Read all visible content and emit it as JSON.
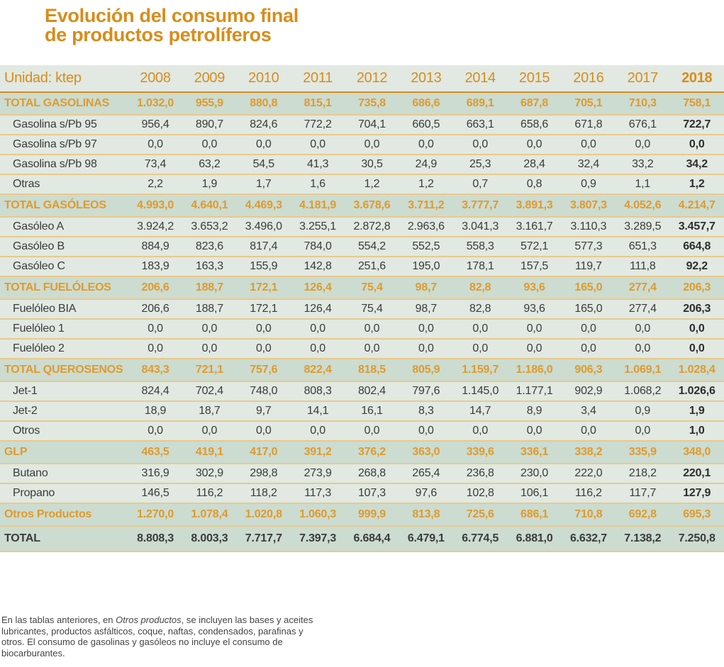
{
  "title": {
    "line1": "Evolución del consumo final",
    "line2": "de productos petrolíferos"
  },
  "colors": {
    "accent": "#d98c1a",
    "total_row_bg": "#ccdcd0",
    "row_bg": "#e1e9e2",
    "divider": "#e9c98c",
    "text": "#3b3b3b"
  },
  "table": {
    "unit_label": "Unidad: ktep",
    "years": [
      "2008",
      "2009",
      "2010",
      "2011",
      "2012",
      "2013",
      "2014",
      "2015",
      "2016",
      "2017",
      "2018"
    ],
    "rows": [
      {
        "type": "total",
        "label": "TOTAL GASOLINAS",
        "values": [
          "1.032,0",
          "955,9",
          "880,8",
          "815,1",
          "735,8",
          "686,6",
          "689,1",
          "687,8",
          "705,1",
          "710,3",
          "758,1"
        ]
      },
      {
        "type": "sub",
        "label": "Gasolina s/Pb 95",
        "values": [
          "956,4",
          "890,7",
          "824,6",
          "772,2",
          "704,1",
          "660,5",
          "663,1",
          "658,6",
          "671,8",
          "676,1",
          "722,7"
        ]
      },
      {
        "type": "sub",
        "label": "Gasolina s/Pb 97",
        "values": [
          "0,0",
          "0,0",
          "0,0",
          "0,0",
          "0,0",
          "0,0",
          "0,0",
          "0,0",
          "0,0",
          "0,0",
          "0,0"
        ]
      },
      {
        "type": "sub",
        "label": "Gasolina s/Pb 98",
        "values": [
          "73,4",
          "63,2",
          "54,5",
          "41,3",
          "30,5",
          "24,9",
          "25,3",
          "28,4",
          "32,4",
          "33,2",
          "34,2"
        ]
      },
      {
        "type": "sub",
        "label": "Otras",
        "values": [
          "2,2",
          "1,9",
          "1,7",
          "1,6",
          "1,2",
          "1,2",
          "0,7",
          "0,8",
          "0,9",
          "1,1",
          "1,2"
        ]
      },
      {
        "type": "total",
        "label": "TOTAL GASÓLEOS",
        "values": [
          "4.993,0",
          "4.640,1",
          "4.469,3",
          "4.181,9",
          "3.678,6",
          "3.711,2",
          "3.777,7",
          "3.891,3",
          "3.807,3",
          "4.052,6",
          "4.214,7"
        ]
      },
      {
        "type": "sub",
        "label": "Gasóleo A",
        "values": [
          "3.924,2",
          "3.653,2",
          "3.496,0",
          "3.255,1",
          "2.872,8",
          "2.963,6",
          "3.041,3",
          "3.161,7",
          "3.110,3",
          "3.289,5",
          "3.457,7"
        ]
      },
      {
        "type": "sub",
        "label": "Gasóleo B",
        "values": [
          "884,9",
          "823,6",
          "817,4",
          "784,0",
          "554,2",
          "552,5",
          "558,3",
          "572,1",
          "577,3",
          "651,3",
          "664,8"
        ]
      },
      {
        "type": "sub",
        "label": "Gasóleo C",
        "values": [
          "183,9",
          "163,3",
          "155,9",
          "142,8",
          "251,6",
          "195,0",
          "178,1",
          "157,5",
          "119,7",
          "111,8",
          "92,2"
        ]
      },
      {
        "type": "total",
        "label": "TOTAL FUELÓLEOS",
        "values": [
          "206,6",
          "188,7",
          "172,1",
          "126,4",
          "75,4",
          "98,7",
          "82,8",
          "93,6",
          "165,0",
          "277,4",
          "206,3"
        ]
      },
      {
        "type": "sub",
        "label": "Fuelóleo BIA",
        "values": [
          "206,6",
          "188,7",
          "172,1",
          "126,4",
          "75,4",
          "98,7",
          "82,8",
          "93,6",
          "165,0",
          "277,4",
          "206,3"
        ]
      },
      {
        "type": "sub",
        "label": "Fuelóleo 1",
        "values": [
          "0,0",
          "0,0",
          "0,0",
          "0,0",
          "0,0",
          "0,0",
          "0,0",
          "0,0",
          "0,0",
          "0,0",
          "0,0"
        ]
      },
      {
        "type": "sub",
        "label": "Fuelóleo 2",
        "values": [
          "0,0",
          "0,0",
          "0,0",
          "0,0",
          "0,0",
          "0,0",
          "0,0",
          "0,0",
          "0,0",
          "0,0",
          "0,0"
        ]
      },
      {
        "type": "total",
        "label": "TOTAL QUEROSENOS",
        "values": [
          "843,3",
          "721,1",
          "757,6",
          "822,4",
          "818,5",
          "805,9",
          "1.159,7",
          "1.186,0",
          "906,3",
          "1.069,1",
          "1.028,4"
        ]
      },
      {
        "type": "sub",
        "label": "Jet-1",
        "values": [
          "824,4",
          "702,4",
          "748,0",
          "808,3",
          "802,4",
          "797,6",
          "1.145,0",
          "1.177,1",
          "902,9",
          "1.068,2",
          "1.026,6"
        ]
      },
      {
        "type": "sub",
        "label": "Jet-2",
        "values": [
          "18,9",
          "18,7",
          "9,7",
          "14,1",
          "16,1",
          "8,3",
          "14,7",
          "8,9",
          "3,4",
          "0,9",
          "1,9"
        ]
      },
      {
        "type": "sub",
        "label": "Otros",
        "values": [
          "0,0",
          "0,0",
          "0,0",
          "0,0",
          "0,0",
          "0,0",
          "0,0",
          "0,0",
          "0,0",
          "0,0",
          "1,0"
        ]
      },
      {
        "type": "total",
        "label": "GLP",
        "values": [
          "463,5",
          "419,1",
          "417,0",
          "391,2",
          "376,2",
          "363,0",
          "339,6",
          "336,1",
          "338,2",
          "335,9",
          "348,0"
        ]
      },
      {
        "type": "sub",
        "label": "Butano",
        "values": [
          "316,9",
          "302,9",
          "298,8",
          "273,9",
          "268,8",
          "265,4",
          "236,8",
          "230,0",
          "222,0",
          "218,2",
          "220,1"
        ]
      },
      {
        "type": "sub",
        "label": "Propano",
        "values": [
          "146,5",
          "116,2",
          "118,2",
          "117,3",
          "107,3",
          "97,6",
          "102,8",
          "106,1",
          "116,2",
          "117,7",
          "127,9"
        ]
      },
      {
        "type": "total",
        "label": "Otros Productos",
        "values": [
          "1.270,0",
          "1.078,4",
          "1.020,8",
          "1.060,3",
          "999,9",
          "813,8",
          "725,6",
          "686,1",
          "710,8",
          "692,8",
          "695,3"
        ]
      },
      {
        "type": "grand",
        "label": "TOTAL",
        "values": [
          "8.808,3",
          "8.003,3",
          "7.717,7",
          "7.397,3",
          "6.684,4",
          "6.479,1",
          "6.774,5",
          "6.881,0",
          "6.632,7",
          "7.138,2",
          "7.250,8"
        ]
      }
    ]
  },
  "footnote": {
    "before": "En las tablas anteriores, en ",
    "italic": "Otros productos",
    "after": ", se incluyen las bases y aceites lubricantes, productos asfálticos, coque, naftas, condensados, parafinas y otros. El consumo de gasolinas y gasóleos no incluye el consumo de biocarburantes."
  },
  "chart_data": {
    "type": "table",
    "title": "Evolución del consumo final de productos petrolíferos",
    "unit": "ktep",
    "columns": [
      "2008",
      "2009",
      "2010",
      "2011",
      "2012",
      "2013",
      "2014",
      "2015",
      "2016",
      "2017",
      "2018"
    ],
    "rows": [
      {
        "name": "TOTAL GASOLINAS",
        "values": [
          1032.0,
          955.9,
          880.8,
          815.1,
          735.8,
          686.6,
          689.1,
          687.8,
          705.1,
          710.3,
          758.1
        ]
      },
      {
        "name": "Gasolina s/Pb 95",
        "values": [
          956.4,
          890.7,
          824.6,
          772.2,
          704.1,
          660.5,
          663.1,
          658.6,
          671.8,
          676.1,
          722.7
        ]
      },
      {
        "name": "Gasolina s/Pb 97",
        "values": [
          0,
          0,
          0,
          0,
          0,
          0,
          0,
          0,
          0,
          0,
          0
        ]
      },
      {
        "name": "Gasolina s/Pb 98",
        "values": [
          73.4,
          63.2,
          54.5,
          41.3,
          30.5,
          24.9,
          25.3,
          28.4,
          32.4,
          33.2,
          34.2
        ]
      },
      {
        "name": "Otras",
        "values": [
          2.2,
          1.9,
          1.7,
          1.6,
          1.2,
          1.2,
          0.7,
          0.8,
          0.9,
          1.1,
          1.2
        ]
      },
      {
        "name": "TOTAL GASÓLEOS",
        "values": [
          4993.0,
          4640.1,
          4469.3,
          4181.9,
          3678.6,
          3711.2,
          3777.7,
          3891.3,
          3807.3,
          4052.6,
          4214.7
        ]
      },
      {
        "name": "Gasóleo A",
        "values": [
          3924.2,
          3653.2,
          3496.0,
          3255.1,
          2872.8,
          2963.6,
          3041.3,
          3161.7,
          3110.3,
          3289.5,
          3457.7
        ]
      },
      {
        "name": "Gasóleo B",
        "values": [
          884.9,
          823.6,
          817.4,
          784.0,
          554.2,
          552.5,
          558.3,
          572.1,
          577.3,
          651.3,
          664.8
        ]
      },
      {
        "name": "Gasóleo C",
        "values": [
          183.9,
          163.3,
          155.9,
          142.8,
          251.6,
          195.0,
          178.1,
          157.5,
          119.7,
          111.8,
          92.2
        ]
      },
      {
        "name": "TOTAL FUELÓLEOS",
        "values": [
          206.6,
          188.7,
          172.1,
          126.4,
          75.4,
          98.7,
          82.8,
          93.6,
          165.0,
          277.4,
          206.3
        ]
      },
      {
        "name": "Fuelóleo BIA",
        "values": [
          206.6,
          188.7,
          172.1,
          126.4,
          75.4,
          98.7,
          82.8,
          93.6,
          165.0,
          277.4,
          206.3
        ]
      },
      {
        "name": "Fuelóleo 1",
        "values": [
          0,
          0,
          0,
          0,
          0,
          0,
          0,
          0,
          0,
          0,
          0
        ]
      },
      {
        "name": "Fuelóleo 2",
        "values": [
          0,
          0,
          0,
          0,
          0,
          0,
          0,
          0,
          0,
          0,
          0
        ]
      },
      {
        "name": "TOTAL QUEROSENOS",
        "values": [
          843.3,
          721.1,
          757.6,
          822.4,
          818.5,
          805.9,
          1159.7,
          1186.0,
          906.3,
          1069.1,
          1028.4
        ]
      },
      {
        "name": "Jet-1",
        "values": [
          824.4,
          702.4,
          748.0,
          808.3,
          802.4,
          797.6,
          1145.0,
          1177.1,
          902.9,
          1068.2,
          1026.6
        ]
      },
      {
        "name": "Jet-2",
        "values": [
          18.9,
          18.7,
          9.7,
          14.1,
          16.1,
          8.3,
          14.7,
          8.9,
          3.4,
          0.9,
          1.9
        ]
      },
      {
        "name": "Otros",
        "values": [
          0,
          0,
          0,
          0,
          0,
          0,
          0,
          0,
          0,
          0,
          1.0
        ]
      },
      {
        "name": "GLP",
        "values": [
          463.5,
          419.1,
          417.0,
          391.2,
          376.2,
          363.0,
          339.6,
          336.1,
          338.2,
          335.9,
          348.0
        ]
      },
      {
        "name": "Butano",
        "values": [
          316.9,
          302.9,
          298.8,
          273.9,
          268.8,
          265.4,
          236.8,
          230.0,
          222.0,
          218.2,
          220.1
        ]
      },
      {
        "name": "Propano",
        "values": [
          146.5,
          116.2,
          118.2,
          117.3,
          107.3,
          97.6,
          102.8,
          106.1,
          116.2,
          117.7,
          127.9
        ]
      },
      {
        "name": "Otros Productos",
        "values": [
          1270.0,
          1078.4,
          1020.8,
          1060.3,
          999.9,
          813.8,
          725.6,
          686.1,
          710.8,
          692.8,
          695.3
        ]
      },
      {
        "name": "TOTAL",
        "values": [
          8808.3,
          8003.3,
          7717.7,
          7397.3,
          6684.4,
          6479.1,
          6774.5,
          6881.0,
          6632.7,
          7138.2,
          7250.8
        ]
      }
    ]
  }
}
